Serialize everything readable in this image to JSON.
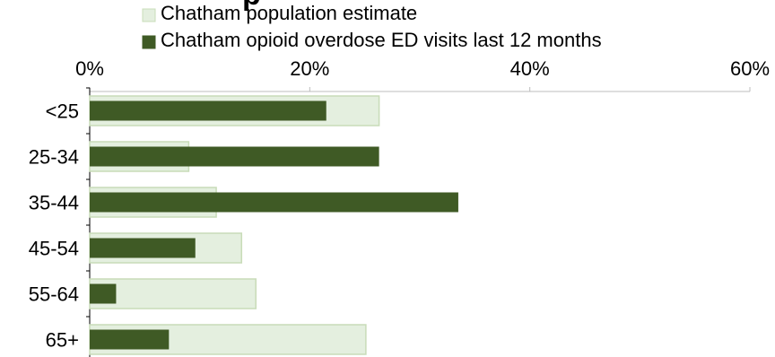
{
  "chart_data": {
    "type": "bar",
    "orientation": "horizontal",
    "title": "",
    "categories": [
      "<25",
      "25-34",
      "35-44",
      "45-54",
      "55-64",
      "65+"
    ],
    "series": [
      {
        "name": "Chatham population estimate",
        "values": [
          26.3,
          9.0,
          11.5,
          13.8,
          15.1,
          25.1
        ],
        "color": "#e4efdf",
        "stroke": "#c8dcb8"
      },
      {
        "name": "Chatham opioid overdose ED visits last 12 months",
        "values": [
          21.5,
          26.3,
          33.5,
          9.6,
          2.4,
          7.2
        ],
        "color": "#3f5a25"
      }
    ],
    "xlim": [
      0,
      60
    ],
    "xticks": [
      "0%",
      "20%",
      "40%",
      "60%"
    ],
    "xtick_values": [
      0,
      20,
      40,
      60
    ],
    "legend_position": "top",
    "grid": false
  }
}
